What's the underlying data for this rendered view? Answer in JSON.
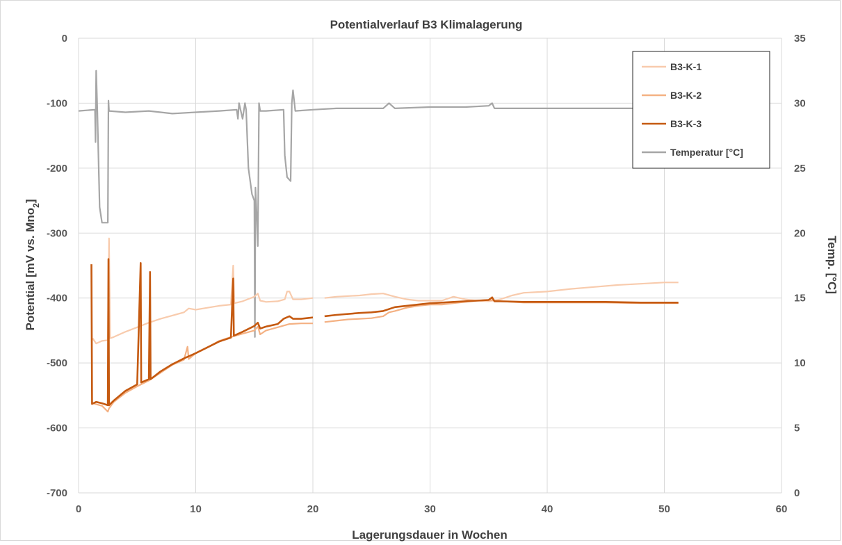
{
  "chart_data": {
    "type": "line",
    "title": "Potentialverlauf B3 Klimalagerung",
    "xlabel": "Lagerungsdauer in Wochen",
    "ylabel": "Potential [mV vs. Mno",
    "ylabel_sub": "2",
    "ylabel_close": "]",
    "y2label": "Temp. [°C]",
    "xlim": [
      0,
      60
    ],
    "ylim": [
      -700,
      0
    ],
    "y2lim": [
      0,
      35
    ],
    "xticks": [
      0,
      10,
      20,
      30,
      40,
      50,
      60
    ],
    "yticks": [
      0,
      -100,
      -200,
      -300,
      -400,
      -500,
      -600,
      -700
    ],
    "y2ticks": [
      35,
      30,
      25,
      20,
      15,
      10,
      5,
      0
    ],
    "grid": true,
    "legend_position": "top-right",
    "series": [
      {
        "name": "B3-K-1",
        "axis": "left",
        "color": "#f8cbad",
        "points": [
          [
            1.2,
            -462
          ],
          [
            1.5,
            -470
          ],
          [
            2.0,
            -466
          ],
          [
            2.5,
            -465
          ],
          [
            2.6,
            -308
          ],
          [
            2.7,
            -462
          ],
          [
            3.0,
            -460
          ],
          [
            4,
            -452
          ],
          [
            5,
            -445
          ],
          [
            6,
            -438
          ],
          [
            7,
            -432
          ],
          [
            8,
            -427
          ],
          [
            9,
            -422
          ],
          [
            9.4,
            -416
          ],
          [
            10,
            -418
          ],
          [
            11,
            -415
          ],
          [
            12,
            -412
          ],
          [
            13,
            -410
          ],
          [
            13.2,
            -350
          ],
          [
            13.3,
            -408
          ],
          [
            14,
            -405
          ],
          [
            15,
            -398
          ],
          [
            15.3,
            -393
          ],
          [
            15.5,
            -404
          ],
          [
            16,
            -406
          ],
          [
            17,
            -405
          ],
          [
            17.6,
            -402
          ],
          [
            17.8,
            -390
          ],
          [
            18,
            -390
          ],
          [
            18.3,
            -402
          ],
          [
            19,
            -402
          ],
          [
            20,
            -400
          ],
          [
            null,
            null
          ],
          [
            21,
            -400
          ],
          [
            22,
            -398
          ],
          [
            24,
            -396
          ],
          [
            25,
            -394
          ],
          [
            26,
            -393
          ],
          [
            27,
            -398
          ],
          [
            28,
            -402
          ],
          [
            29,
            -404
          ],
          [
            30,
            -404
          ],
          [
            31,
            -404
          ],
          [
            32,
            -398
          ],
          [
            33,
            -402
          ],
          [
            34,
            -404
          ],
          [
            35,
            -405
          ],
          [
            36,
            -402
          ],
          [
            37,
            -396
          ],
          [
            38,
            -392
          ],
          [
            40,
            -390
          ],
          [
            42,
            -386
          ],
          [
            44,
            -383
          ],
          [
            46,
            -380
          ],
          [
            48,
            -378
          ],
          [
            50,
            -376
          ],
          [
            51.2,
            -376
          ]
        ]
      },
      {
        "name": "B3-K-2",
        "axis": "left",
        "color": "#f4b183",
        "points": [
          [
            1.2,
            -562
          ],
          [
            2.0,
            -566
          ],
          [
            2.5,
            -575
          ],
          [
            2.6,
            -570
          ],
          [
            3,
            -560
          ],
          [
            4,
            -546
          ],
          [
            5,
            -536
          ],
          [
            6,
            -527
          ],
          [
            7,
            -515
          ],
          [
            8,
            -503
          ],
          [
            9,
            -495
          ],
          [
            9.3,
            -475
          ],
          [
            9.4,
            -494
          ],
          [
            10,
            -485
          ],
          [
            11,
            -476
          ],
          [
            12,
            -466
          ],
          [
            13,
            -460
          ],
          [
            14,
            -455
          ],
          [
            15,
            -450
          ],
          [
            15.3,
            -444
          ],
          [
            15.5,
            -456
          ],
          [
            16,
            -450
          ],
          [
            17,
            -445
          ],
          [
            18,
            -440
          ],
          [
            19,
            -439
          ],
          [
            20,
            -439
          ],
          [
            null,
            null
          ],
          [
            21,
            -437
          ],
          [
            22,
            -435
          ],
          [
            23,
            -433
          ],
          [
            24,
            -432
          ],
          [
            25,
            -431
          ],
          [
            26,
            -428
          ],
          [
            26.5,
            -422
          ],
          [
            27,
            -420
          ],
          [
            28,
            -415
          ],
          [
            29,
            -412
          ],
          [
            30,
            -410
          ],
          [
            31,
            -410
          ],
          [
            32,
            -408
          ],
          [
            33,
            -406
          ],
          [
            34,
            -404
          ],
          [
            35,
            -403
          ],
          [
            36,
            -405
          ],
          [
            37,
            -406
          ],
          [
            38,
            -407
          ],
          [
            40,
            -407
          ],
          [
            42,
            -407
          ],
          [
            45,
            -407
          ],
          [
            48,
            -408
          ],
          [
            51.2,
            -408
          ]
        ]
      },
      {
        "name": "B3-K-3",
        "axis": "left",
        "color": "#c55a11",
        "points": [
          [
            1.1,
            -348
          ],
          [
            1.15,
            -563
          ],
          [
            1.5,
            -560
          ],
          [
            2.0,
            -562
          ],
          [
            2.5,
            -565
          ],
          [
            2.55,
            -340
          ],
          [
            2.6,
            -565
          ],
          [
            3,
            -558
          ],
          [
            4,
            -543
          ],
          [
            5,
            -533
          ],
          [
            5.3,
            -346
          ],
          [
            5.35,
            -530
          ],
          [
            6,
            -525
          ],
          [
            6.1,
            -360
          ],
          [
            6.15,
            -525
          ],
          [
            7,
            -513
          ],
          [
            8,
            -502
          ],
          [
            9,
            -493
          ],
          [
            10,
            -485
          ],
          [
            11,
            -476
          ],
          [
            12,
            -467
          ],
          [
            13,
            -461
          ],
          [
            13.2,
            -370
          ],
          [
            13.25,
            -458
          ],
          [
            14,
            -452
          ],
          [
            15,
            -443
          ],
          [
            15.3,
            -438
          ],
          [
            15.5,
            -447
          ],
          [
            16,
            -444
          ],
          [
            17,
            -440
          ],
          [
            17.5,
            -432
          ],
          [
            18,
            -428
          ],
          [
            18.3,
            -432
          ],
          [
            19,
            -432
          ],
          [
            20,
            -430
          ],
          [
            null,
            null
          ],
          [
            21,
            -428
          ],
          [
            22,
            -426
          ],
          [
            24,
            -423
          ],
          [
            25,
            -422
          ],
          [
            26,
            -420
          ],
          [
            27,
            -414
          ],
          [
            28,
            -412
          ],
          [
            29,
            -410
          ],
          [
            30,
            -408
          ],
          [
            31,
            -407
          ],
          [
            32,
            -406
          ],
          [
            33,
            -405
          ],
          [
            34,
            -404
          ],
          [
            35,
            -403
          ],
          [
            35.3,
            -399
          ],
          [
            35.5,
            -405
          ],
          [
            36,
            -405
          ],
          [
            38,
            -406
          ],
          [
            40,
            -406
          ],
          [
            42,
            -406
          ],
          [
            45,
            -406
          ],
          [
            48,
            -407
          ],
          [
            51.2,
            -407
          ]
        ]
      },
      {
        "name": "Temperatur [°C]",
        "axis": "right",
        "color": "#a6a6a6",
        "points": [
          [
            0,
            29.4
          ],
          [
            1.4,
            29.5
          ],
          [
            1.45,
            27.0
          ],
          [
            1.5,
            32.5
          ],
          [
            1.6,
            29.5
          ],
          [
            1.8,
            22.0
          ],
          [
            2.0,
            20.8
          ],
          [
            2.5,
            20.8
          ],
          [
            2.55,
            30.2
          ],
          [
            2.6,
            29.4
          ],
          [
            4,
            29.3
          ],
          [
            6,
            29.4
          ],
          [
            8,
            29.2
          ],
          [
            10,
            29.3
          ],
          [
            12,
            29.4
          ],
          [
            13.5,
            29.5
          ],
          [
            13.6,
            28.8
          ],
          [
            13.7,
            30.0
          ],
          [
            14,
            28.8
          ],
          [
            14.2,
            30.0
          ],
          [
            14.3,
            29.5
          ],
          [
            14.5,
            25.0
          ],
          [
            14.8,
            23.0
          ],
          [
            15.0,
            22.5
          ],
          [
            15.05,
            12.0
          ],
          [
            15.1,
            23.5
          ],
          [
            15.2,
            21.5
          ],
          [
            15.3,
            19.0
          ],
          [
            15.4,
            30.0
          ],
          [
            15.5,
            29.4
          ],
          [
            16,
            29.4
          ],
          [
            17.5,
            29.5
          ],
          [
            17.6,
            26.0
          ],
          [
            17.8,
            24.3
          ],
          [
            18.1,
            24.0
          ],
          [
            18.2,
            30.0
          ],
          [
            18.3,
            31.0
          ],
          [
            18.5,
            29.4
          ],
          [
            20,
            29.5
          ],
          [
            22,
            29.6
          ],
          [
            24,
            29.6
          ],
          [
            26,
            29.6
          ],
          [
            26.5,
            30.0
          ],
          [
            27,
            29.6
          ],
          [
            30,
            29.7
          ],
          [
            33,
            29.7
          ],
          [
            35,
            29.8
          ],
          [
            35.3,
            30.0
          ],
          [
            35.5,
            29.6
          ],
          [
            38,
            29.6
          ],
          [
            41,
            29.6
          ],
          [
            44,
            29.6
          ],
          [
            47,
            29.6
          ],
          [
            50,
            29.6
          ],
          [
            51.2,
            29.6
          ]
        ]
      }
    ]
  }
}
